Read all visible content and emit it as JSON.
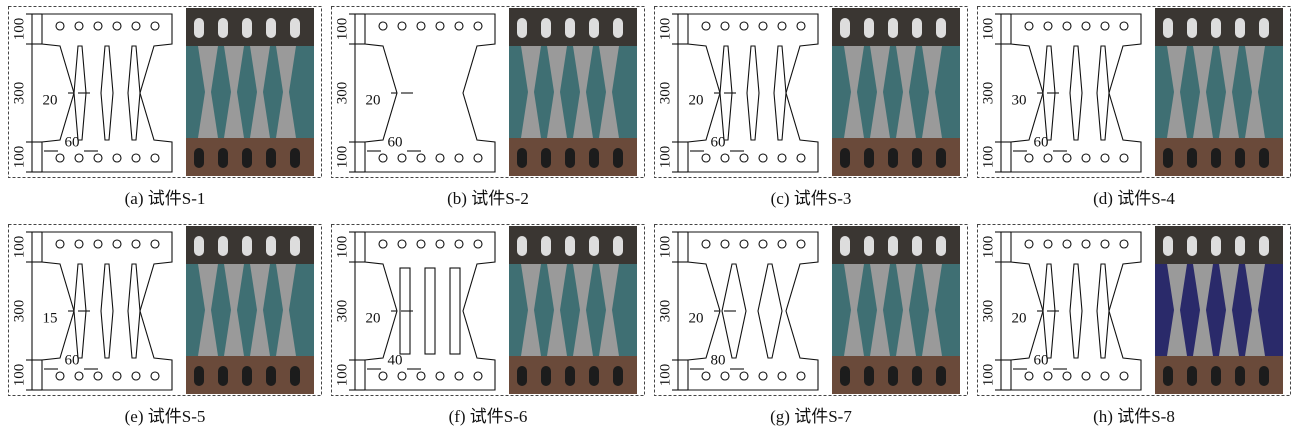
{
  "panels": [
    {
      "caption": "(a) 试件S-1",
      "top": "100",
      "middle": "300",
      "bottom": "100",
      "gap": "20",
      "width": "60"
    },
    {
      "caption": "(b) 试件S-2",
      "top": "100",
      "middle": "300",
      "bottom": "100",
      "gap": "20",
      "width": "60"
    },
    {
      "caption": "(c) 试件S-3",
      "top": "100",
      "middle": "300",
      "bottom": "100",
      "gap": "20",
      "width": "60"
    },
    {
      "caption": "(d) 试件S-4",
      "top": "100",
      "middle": "300",
      "bottom": "100",
      "gap": "30",
      "width": "60"
    },
    {
      "caption": "(e) 试件S-5",
      "top": "100",
      "middle": "300",
      "bottom": "100",
      "gap": "15",
      "width": "60"
    },
    {
      "caption": "(f) 试件S-6",
      "top": "100",
      "middle": "300",
      "bottom": "100",
      "gap": "20",
      "width": "40"
    },
    {
      "caption": "(g) 试件S-7",
      "top": "100",
      "middle": "300",
      "bottom": "100",
      "gap": "20",
      "width": "80"
    },
    {
      "caption": "(h) 试件S-8",
      "top": "100",
      "middle": "300",
      "bottom": "100",
      "gap": "20",
      "width": "60"
    }
  ]
}
